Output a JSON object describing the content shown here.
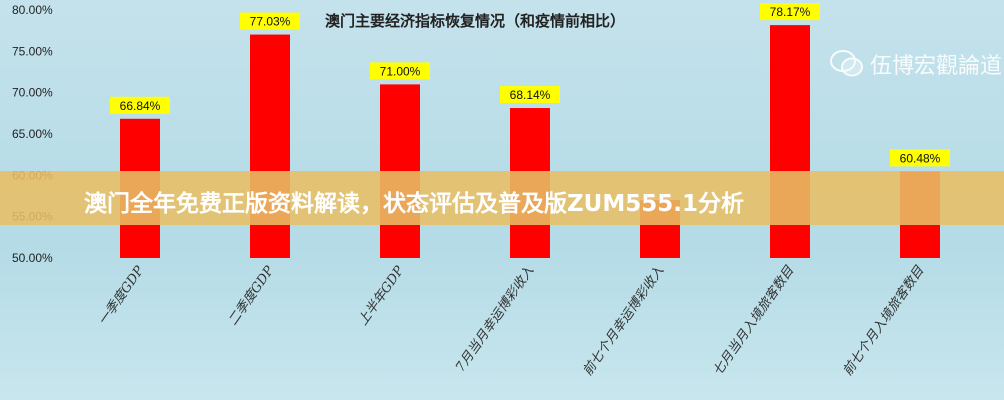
{
  "chart_data": {
    "type": "bar",
    "title": "澳门主要经济指标恢复情况（和疫情前相比）",
    "categories": [
      "一季度GDP",
      "二季度GDP",
      "上半年GDP",
      "7月当月幸运博彩收入",
      "前七个月幸运博彩收入",
      "七月当月入境旅客数目",
      "前七个月入境旅客数目"
    ],
    "values": [
      66.84,
      77.03,
      71.0,
      68.14,
      57.0,
      78.17,
      60.48
    ],
    "data_labels": [
      "66.84%",
      "77.03%",
      "71.00%",
      "68.14%",
      "",
      "78.17%",
      "60.48%"
    ],
    "ylim": [
      50,
      80
    ],
    "yticks": [
      "50.00%",
      "55.00%",
      "60.00%",
      "65.00%",
      "70.00%",
      "75.00%",
      "80.00%"
    ],
    "grid": false,
    "bar_color": "#ff0000",
    "label_bg": "#ffff00"
  },
  "overlay": {
    "banner": "澳门全年免费正版资料解读，状态评估及普及版ZUM555.1分析"
  },
  "watermark": {
    "text": "伍博宏觀論道",
    "icon": "wechat-icon"
  }
}
